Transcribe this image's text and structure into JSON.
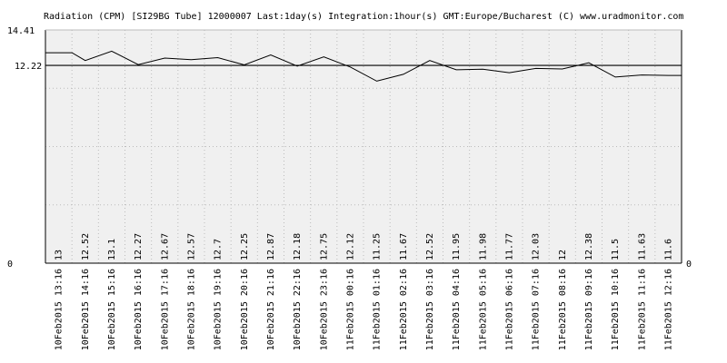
{
  "chart_data": {
    "type": "line",
    "title": "Radiation (CPM) [SI29BG Tube] 12000007 Last:1day(s) Integration:1hour(s) GMT:Europe/Bucharest (C) www.uradmonitor.com",
    "y_top_label": "14.41",
    "y_avg_label": "12.22",
    "y_zero_left": "0",
    "y_zero_right": "0",
    "ylim": [
      0,
      14.41
    ],
    "average": 12.22,
    "x": [
      "10Feb2015 13:16",
      "10Feb2015 14:16",
      "10Feb2015 15:16",
      "10Feb2015 16:16",
      "10Feb2015 17:16",
      "10Feb2015 18:16",
      "10Feb2015 19:16",
      "10Feb2015 20:16",
      "10Feb2015 21:16",
      "10Feb2015 22:16",
      "10Feb2015 23:16",
      "11Feb2015 00:16",
      "11Feb2015 01:16",
      "11Feb2015 02:16",
      "11Feb2015 03:16",
      "11Feb2015 04:16",
      "11Feb2015 05:16",
      "11Feb2015 06:16",
      "11Feb2015 07:16",
      "11Feb2015 08:16",
      "11Feb2015 09:16",
      "11Feb2015 10:16",
      "11Feb2015 11:16",
      "11Feb2015 12:16"
    ],
    "value_labels": [
      "13",
      "12.52",
      "13.1",
      "12.27",
      "12.67",
      "12.57",
      "12.7",
      "12.25",
      "12.87",
      "12.18",
      "12.75",
      "12.12",
      "11.25",
      "11.67",
      "12.52",
      "11.95",
      "11.98",
      "11.77",
      "12.03",
      "12",
      "12.38",
      "11.5",
      "11.63",
      "11.6"
    ],
    "points": [
      {
        "x": 0,
        "y": 13.0
      },
      {
        "x": 1,
        "y": 13.0
      },
      {
        "x": 1.5,
        "y": 12.52
      },
      {
        "x": 2.5,
        "y": 13.1
      },
      {
        "x": 3.5,
        "y": 12.27
      },
      {
        "x": 4.5,
        "y": 12.67
      },
      {
        "x": 5.5,
        "y": 12.57
      },
      {
        "x": 6.5,
        "y": 12.7
      },
      {
        "x": 7.5,
        "y": 12.25
      },
      {
        "x": 8.5,
        "y": 12.87
      },
      {
        "x": 9.5,
        "y": 12.18
      },
      {
        "x": 10.5,
        "y": 12.75
      },
      {
        "x": 11.5,
        "y": 12.12
      },
      {
        "x": 12.5,
        "y": 11.25
      },
      {
        "x": 13.5,
        "y": 11.67
      },
      {
        "x": 14.5,
        "y": 12.52
      },
      {
        "x": 15.5,
        "y": 11.95
      },
      {
        "x": 16.5,
        "y": 11.98
      },
      {
        "x": 17.5,
        "y": 11.77
      },
      {
        "x": 18.5,
        "y": 12.03
      },
      {
        "x": 19.5,
        "y": 12.0
      },
      {
        "x": 20.5,
        "y": 12.38
      },
      {
        "x": 21.5,
        "y": 11.5
      },
      {
        "x": 22.5,
        "y": 11.63
      },
      {
        "x": 23.5,
        "y": 11.6
      },
      {
        "x": 24,
        "y": 11.6
      }
    ],
    "grid": true,
    "colors": {
      "plot_background": "#f0f0f0",
      "grid": "#bbbbbb",
      "line": "#000000",
      "average_line": "#000000",
      "axes": "#000000",
      "text": "#000000"
    }
  }
}
